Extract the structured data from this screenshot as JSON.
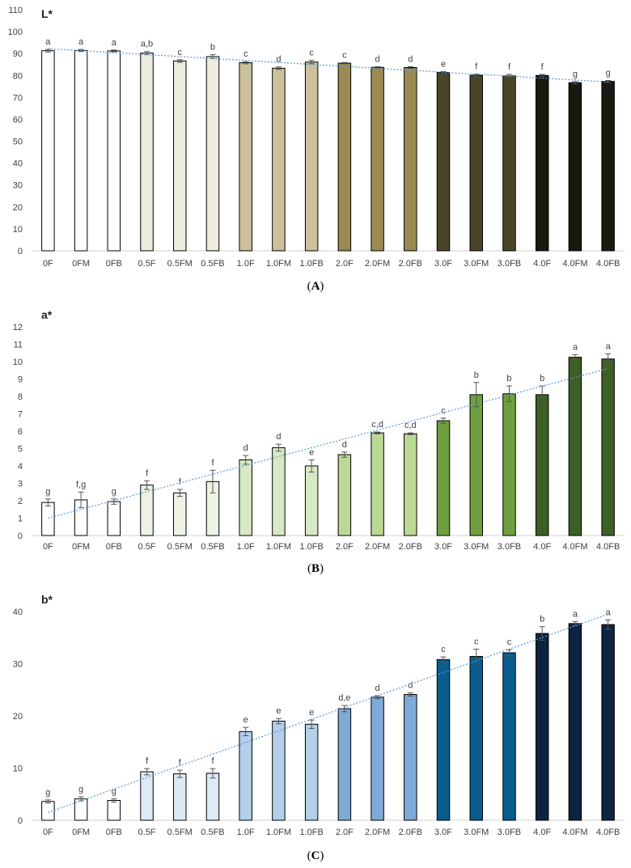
{
  "chart_data": [
    {
      "type": "bar",
      "title": "L*",
      "panel_label": "A",
      "categories": [
        "0F",
        "0FM",
        "0FB",
        "0.5F",
        "0.5FM",
        "0.5FB",
        "1.0F",
        "1.0FM",
        "1.0FB",
        "2.0F",
        "2.0FM",
        "2.0FB",
        "3.0F",
        "3.0FM",
        "3.0FB",
        "4.0F",
        "4.0FM",
        "4.0FB"
      ],
      "values": [
        91.3,
        91.4,
        91.2,
        90.2,
        86.6,
        88.6,
        85.8,
        83.3,
        86.1,
        85.6,
        83.7,
        83.6,
        81.4,
        80.1,
        79.8,
        80.0,
        76.7,
        77.3
      ],
      "errors": [
        0.6,
        0.5,
        0.4,
        0.7,
        0.6,
        0.9,
        0.5,
        0.6,
        0.8,
        0.3,
        0.3,
        0.4,
        0.4,
        0.6,
        0.7,
        0.5,
        0.5,
        0.4
      ],
      "letters": [
        "a",
        "a",
        "a",
        "a,b",
        "c",
        "b",
        "c",
        "d",
        "c",
        "c",
        "d",
        "d",
        "e",
        "f",
        "f",
        "f",
        "g",
        "g"
      ],
      "colors": [
        "#ffffff",
        "#ffffff",
        "#ffffff",
        "#ecebdc",
        "#ecebdc",
        "#ecebdc",
        "#ccc19d",
        "#ccc19d",
        "#ccc19d",
        "#9b8b52",
        "#9b8b52",
        "#9b8b52",
        "#4b4429",
        "#4b4429",
        "#4b4429",
        "#1a1810",
        "#1a1810",
        "#1a1810"
      ],
      "trendline": [
        92.2,
        77.0
      ],
      "trend_color": "#5b9bd5",
      "ylim": [
        0,
        110
      ],
      "ytick_step": 10,
      "xlabel": "",
      "ylabel": "",
      "grid": false
    },
    {
      "type": "bar",
      "title": "a*",
      "panel_label": "B",
      "categories": [
        "0F",
        "0FM",
        "0FB",
        "0.5F",
        "0.5FM",
        "0.5FB",
        "1.0F",
        "1.0FM",
        "1.0FB",
        "2.0F",
        "2.0FM",
        "2.0FB",
        "3.0F",
        "3.0FM",
        "3.0FB",
        "4.0F",
        "4.0FM",
        "4.0FB"
      ],
      "values": [
        1.9,
        2.05,
        1.95,
        2.9,
        2.45,
        3.1,
        4.35,
        5.05,
        4.0,
        4.65,
        5.9,
        5.85,
        6.6,
        8.1,
        8.15,
        8.1,
        10.25,
        10.15
      ],
      "errors": [
        0.2,
        0.45,
        0.15,
        0.25,
        0.2,
        0.65,
        0.25,
        0.2,
        0.35,
        0.15,
        0.05,
        0.05,
        0.15,
        0.7,
        0.45,
        0.5,
        0.15,
        0.3
      ],
      "letters": [
        "g",
        "f,g",
        "g",
        "f",
        "f",
        "f",
        "d",
        "d",
        "e",
        "d",
        "c,d",
        "c,d",
        "c",
        "b",
        "b",
        "b",
        "a",
        "a"
      ],
      "colors": [
        "#ffffff",
        "#ffffff",
        "#ffffff",
        "#edf4e5",
        "#edf4e5",
        "#edf4e5",
        "#d8e9c5",
        "#d8e9c5",
        "#d8e9c5",
        "#bcd895",
        "#bcd895",
        "#bcd895",
        "#6f9e3f",
        "#6f9e3f",
        "#6f9e3f",
        "#3e5f25",
        "#3e5f25",
        "#3e5f25"
      ],
      "trendline": [
        1.0,
        9.6
      ],
      "trend_color": "#5b9bd5",
      "ylim": [
        0,
        12
      ],
      "ytick_step": 1,
      "xlabel": "",
      "ylabel": "",
      "grid": false
    },
    {
      "type": "bar",
      "title": "b*",
      "panel_label": "C",
      "categories": [
        "0F",
        "0FM",
        "0FB",
        "0.5F",
        "0.5FM",
        "0.5FB",
        "1.0F",
        "1.0FM",
        "1.0FB",
        "2.0F",
        "2.0FM",
        "2.0FB",
        "3.0F",
        "3.0FM",
        "3.0FB",
        "4.0F",
        "4.0FM",
        "4.0FB"
      ],
      "values": [
        3.6,
        4.1,
        3.8,
        9.3,
        8.9,
        9.0,
        17.0,
        19.0,
        18.4,
        21.4,
        23.6,
        24.1,
        30.8,
        31.4,
        32.1,
        35.8,
        37.7,
        37.5
      ],
      "errors": [
        0.3,
        0.4,
        0.3,
        0.6,
        0.7,
        0.9,
        0.8,
        0.5,
        0.8,
        0.6,
        0.3,
        0.3,
        0.5,
        1.4,
        0.6,
        1.3,
        0.4,
        0.9
      ],
      "letters": [
        "g",
        "g",
        "g",
        "f",
        "f",
        "f",
        "e",
        "e",
        "e",
        "d,e",
        "d",
        "d",
        "c",
        "c",
        "c",
        "b",
        "a",
        "a"
      ],
      "colors": [
        "#ffffff",
        "#ffffff",
        "#ffffff",
        "#dde9f5",
        "#dde9f5",
        "#dde9f5",
        "#b3cfe9",
        "#b3cfe9",
        "#b3cfe9",
        "#7eaad6",
        "#7eaad6",
        "#7eaad6",
        "#0a5c8f",
        "#0a5c8f",
        "#0a5c8f",
        "#0c2442",
        "#0c2442",
        "#0c2442"
      ],
      "trendline": [
        1.5,
        39.5
      ],
      "trend_color": "#5b9bd5",
      "ylim": [
        0,
        40
      ],
      "ytick_step": 10,
      "xlabel": "",
      "ylabel": "",
      "grid": false
    }
  ]
}
